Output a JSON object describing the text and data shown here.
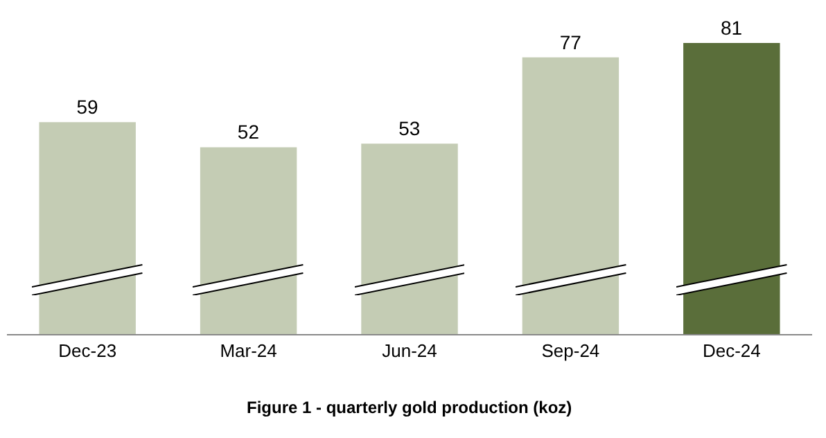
{
  "chart_data": {
    "type": "bar",
    "title": "Figure 1 - quarterly gold production (koz)",
    "categories": [
      "Dec-23",
      "Mar-24",
      "Jun-24",
      "Sep-24",
      "Dec-24"
    ],
    "values": [
      59,
      52,
      53,
      77,
      81
    ],
    "colors": [
      "#c4ccb4",
      "#c4ccb4",
      "#c4ccb4",
      "#c4ccb4",
      "#5a6e3a"
    ],
    "data_labels": true,
    "grid": false,
    "legend": false
  }
}
